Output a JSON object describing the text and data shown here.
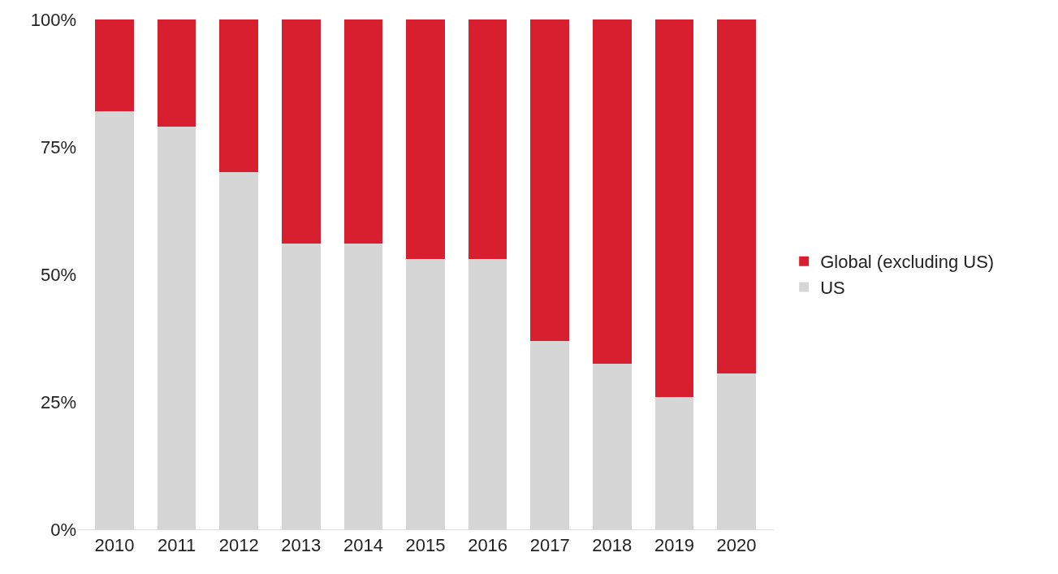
{
  "chart_data": {
    "type": "bar",
    "stacked": true,
    "categories": [
      "2010",
      "2011",
      "2012",
      "2013",
      "2014",
      "2015",
      "2016",
      "2017",
      "2018",
      "2019",
      "2020"
    ],
    "series": [
      {
        "name": "US",
        "color": "#d6d6d6",
        "values": [
          82,
          79,
          70,
          56,
          56,
          53,
          53,
          37,
          32.5,
          26,
          30.5
        ]
      },
      {
        "name": "Global (excluding US)",
        "color": "#d71f30",
        "values": [
          18,
          21,
          30,
          44,
          44,
          47,
          47,
          63,
          67.5,
          74,
          69.5
        ]
      }
    ],
    "ylim": [
      0,
      100
    ],
    "yticks": [
      {
        "value": 0,
        "label": "0%"
      },
      {
        "value": 25,
        "label": "25%"
      },
      {
        "value": 50,
        "label": "50%"
      },
      {
        "value": 75,
        "label": "75%"
      },
      {
        "value": 100,
        "label": "100%"
      }
    ],
    "legend": "right"
  }
}
